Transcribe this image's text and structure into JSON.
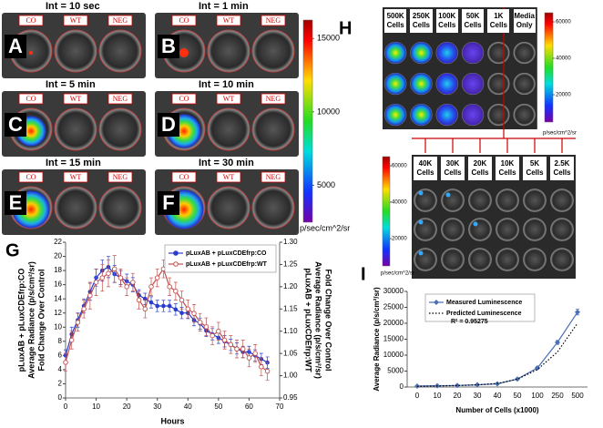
{
  "plates": [
    {
      "letter": "A",
      "title": "Int = 10 sec",
      "wells": [
        "CO",
        "WT",
        "NEG"
      ]
    },
    {
      "letter": "B",
      "title": "Int = 1 min",
      "wells": [
        "CO",
        "WT",
        "NEG"
      ]
    },
    {
      "letter": "C",
      "title": "Int = 5 min",
      "wells": [
        "CO",
        "WT",
        "NEG"
      ]
    },
    {
      "letter": "D",
      "title": "Int = 10 min",
      "wells": [
        "CO",
        "WT",
        "NEG"
      ]
    },
    {
      "letter": "E",
      "title": "Int = 15 min",
      "wells": [
        "CO",
        "WT",
        "NEG"
      ]
    },
    {
      "letter": "F",
      "title": "Int = 30 min",
      "wells": [
        "CO",
        "WT",
        "NEG"
      ]
    }
  ],
  "colorbar": {
    "lim": [
      2500,
      16250
    ],
    "ticks": [
      15000,
      10000,
      5000
    ],
    "unit": "p/sec/cm^2/sr"
  },
  "plate_h": {
    "letter": "H",
    "top": {
      "columns": [
        "500K Cells",
        "250K Cells",
        "100K Cells",
        "50K Cells",
        "1K Cells",
        "Media Only"
      ],
      "colorbar": {
        "lim": [
          5000,
          65000
        ],
        "ticks": [
          60000,
          40000,
          20000
        ],
        "unit": "p/sec/cm^2/sr"
      }
    },
    "bottom": {
      "columns": [
        "40K Cells",
        "30K Cells",
        "20K Cells",
        "10K Cells",
        "5K Cells",
        "2.5K Cells"
      ],
      "colorbar": {
        "lim": [
          5000,
          65000
        ],
        "ticks": [
          60000,
          40000,
          20000
        ],
        "unit": "p/sec/cm^2/sr"
      }
    }
  },
  "chart_data": [
    {
      "type": "line",
      "panel": "G",
      "xlabel": "Hours",
      "ylabel": [
        "pLuxAB + pLuxCDEfrp:CO",
        "Average Radiance (p/s/cm²/sr)",
        "Fold Change Over Control"
      ],
      "y2label": [
        "pLuxAB + pLuxCDEfrp:WT",
        "Average Radiance (p/s/cm²/sr)",
        "Fold Change Over Control"
      ],
      "xlim": [
        0,
        70
      ],
      "xticks": [
        0,
        10,
        20,
        30,
        40,
        50,
        60,
        70
      ],
      "ylim": [
        0,
        22
      ],
      "yticks": [
        0,
        2,
        4,
        6,
        8,
        10,
        12,
        14,
        16,
        18,
        20,
        22
      ],
      "y2lim": [
        0.95,
        1.3
      ],
      "y2ticks": [
        0.95,
        {
          "value": 1,
          "label": "1.00"
        },
        1.05,
        {
          "value": 1.1,
          "label": "1.10"
        },
        1.15,
        {
          "value": 1.2,
          "label": "1.20"
        },
        1.25,
        {
          "value": 1.3,
          "label": "1.30"
        }
      ],
      "x": [
        0,
        2,
        4,
        6,
        8,
        10,
        12,
        14,
        16,
        18,
        20,
        22,
        24,
        26,
        28,
        30,
        32,
        34,
        36,
        38,
        40,
        42,
        44,
        46,
        48,
        50,
        52,
        54,
        56,
        58,
        60,
        62,
        64,
        66
      ],
      "legend": "upper right",
      "series": [
        {
          "name": "pLuxAB + pLuxCDEfrp:CO",
          "color": "#2a3ccc",
          "marker": "filled",
          "values": [
            6,
            9,
            11,
            13,
            15,
            17,
            18,
            18.5,
            17.5,
            17,
            16.5,
            16,
            14.5,
            14,
            13.5,
            13,
            13,
            13,
            12.5,
            12,
            12,
            11,
            10.5,
            9.5,
            9,
            8.5,
            8,
            7.5,
            7,
            6.5,
            6.5,
            6,
            5.5,
            5
          ],
          "errors": [
            0.8,
            1,
            1,
            1,
            1.2,
            1.2,
            1.5,
            1.5,
            1.2,
            1,
            1,
            1,
            0.8,
            0.8,
            0.8,
            0.8,
            0.8,
            0.8,
            0.8,
            0.8,
            0.8,
            0.8,
            0.8,
            0.8,
            0.8,
            0.8,
            0.8,
            0.8,
            0.8,
            0.8,
            0.8,
            0.8,
            0.8,
            0.8
          ]
        },
        {
          "name": "pLuxAB + pLuxCDEfrp:WT",
          "color": "#c0504d",
          "marker": "open",
          "axis": "y2",
          "values": [
            1.03,
            1.08,
            1.12,
            1.15,
            1.18,
            1.21,
            1.22,
            1.23,
            1.24,
            1.22,
            1.2,
            1.21,
            1.17,
            1.15,
            1.2,
            1.22,
            1.24,
            1.2,
            1.19,
            1.17,
            1.15,
            1.14,
            1.12,
            1.11,
            1.09,
            1.1,
            1.08,
            1.07,
            1.06,
            1.06,
            1.04,
            1.05,
            1.02,
            1.01
          ],
          "errors": [
            0.02,
            0.02,
            0.02,
            0.02,
            0.03,
            0.03,
            0.03,
            0.03,
            0.03,
            0.02,
            0.02,
            0.02,
            0.02,
            0.02,
            0.02,
            0.02,
            0.02,
            0.02,
            0.02,
            0.02,
            0.02,
            0.02,
            0.02,
            0.02,
            0.02,
            0.02,
            0.02,
            0.02,
            0.02,
            0.02,
            0.02,
            0.02,
            0.02,
            0.02
          ]
        }
      ]
    },
    {
      "type": "line",
      "panel": "I",
      "xlabel": "Number of Cells (x1000)",
      "ylabel": [
        "Average Radiance (p/s/cm²/sr)"
      ],
      "categories": [
        "0",
        "10",
        "20",
        "30",
        "40",
        "50",
        "100",
        "250",
        "500"
      ],
      "ylim": [
        0,
        30000
      ],
      "yticks": [
        0,
        5000,
        10000,
        15000,
        20000,
        25000,
        30000
      ],
      "legend": "upper left",
      "annotation": "R² = 0.95275",
      "series": [
        {
          "name": "Measured Luminescence",
          "color": "#4a6fb5",
          "marker": "diamond",
          "values": [
            300,
            400,
            500,
            700,
            1000,
            2500,
            6000,
            14000,
            23500
          ],
          "errors": [
            100,
            100,
            100,
            150,
            200,
            300,
            400,
            600,
            900
          ]
        },
        {
          "name": "Predicted Luminescence",
          "color": "#000000",
          "dash": "dotted",
          "values": [
            200,
            300,
            450,
            700,
            1100,
            2500,
            5500,
            11000,
            20000
          ]
        }
      ]
    }
  ]
}
